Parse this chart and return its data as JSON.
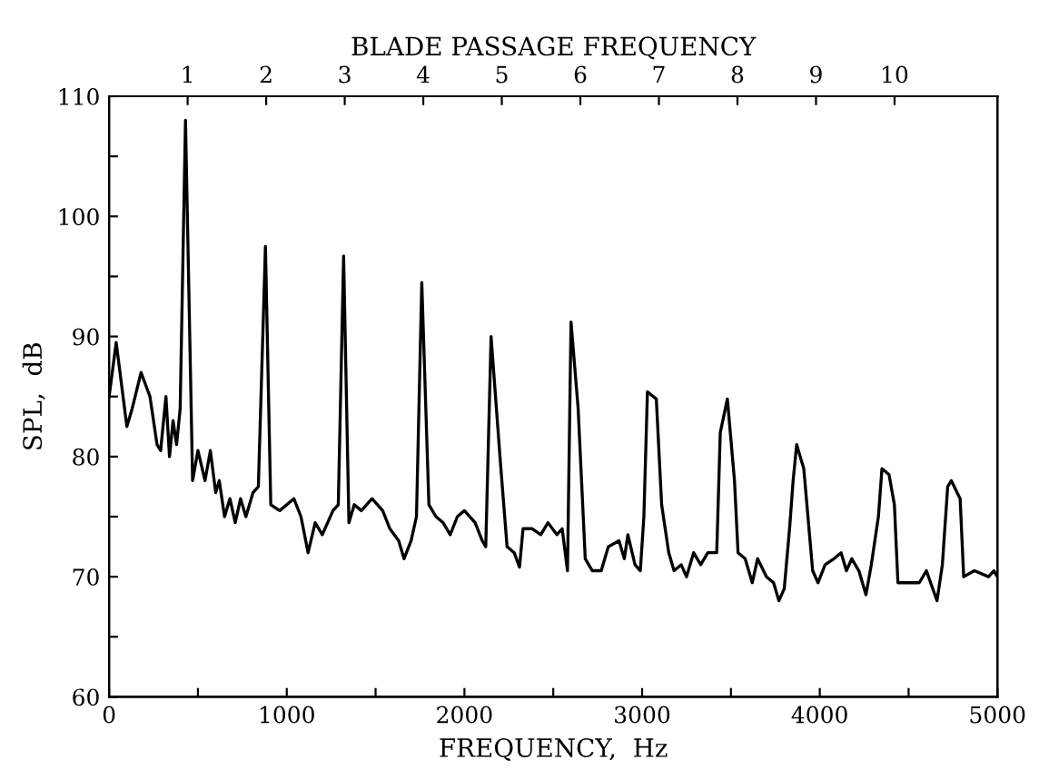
{
  "chart_data": {
    "type": "line",
    "xlabel": "FREQUENCY,  Hz",
    "ylabel": "SPL,  dB",
    "x2label": "BLADE PASSAGE FREQUENCY",
    "x": [
      0,
      40,
      100,
      130,
      180,
      230,
      270,
      290,
      320,
      340,
      360,
      380,
      400,
      430,
      470,
      500,
      540,
      570,
      600,
      620,
      650,
      680,
      710,
      740,
      770,
      810,
      840,
      880,
      910,
      960,
      1040,
      1080,
      1120,
      1160,
      1200,
      1260,
      1290,
      1320,
      1350,
      1380,
      1420,
      1480,
      1540,
      1580,
      1630,
      1660,
      1700,
      1730,
      1760,
      1800,
      1840,
      1880,
      1920,
      1960,
      2000,
      2060,
      2100,
      2120,
      2150,
      2200,
      2240,
      2280,
      2310,
      2330,
      2380,
      2430,
      2470,
      2520,
      2550,
      2580,
      2600,
      2640,
      2680,
      2720,
      2770,
      2810,
      2870,
      2900,
      2920,
      2960,
      2990,
      3010,
      3030,
      3080,
      3110,
      3150,
      3180,
      3220,
      3250,
      3290,
      3330,
      3370,
      3420,
      3440,
      3480,
      3520,
      3540,
      3580,
      3620,
      3650,
      3700,
      3740,
      3770,
      3800,
      3830,
      3850,
      3870,
      3910,
      3960,
      3990,
      4030,
      4080,
      4120,
      4150,
      4180,
      4220,
      4260,
      4290,
      4330,
      4350,
      4390,
      4420,
      4440,
      4500,
      4560,
      4600,
      4660,
      4690,
      4720,
      4740,
      4790,
      4810,
      4870,
      4950,
      4980,
      5000
    ],
    "series": [
      {
        "color": "#000000",
        "values": [
          85,
          89.5,
          82.5,
          84,
          87,
          85,
          81,
          80.5,
          85,
          80,
          83,
          81,
          84,
          108,
          78,
          80.5,
          78,
          80.5,
          77,
          78,
          75,
          76.5,
          74.5,
          76.5,
          75,
          77,
          77.5,
          97.5,
          76,
          75.5,
          76.5,
          75,
          72,
          74.5,
          73.5,
          75.5,
          76,
          96.7,
          74.5,
          76,
          75.5,
          76.5,
          75.5,
          74,
          73,
          71.5,
          73,
          75,
          94.5,
          76,
          75,
          74.5,
          73.5,
          75,
          75.5,
          74.5,
          73,
          72.5,
          90,
          80,
          72.5,
          72,
          70.8,
          74,
          74,
          73.5,
          74.5,
          73.5,
          74,
          70.5,
          91.2,
          84,
          71.5,
          70.5,
          70.5,
          72.5,
          73,
          71.5,
          73.5,
          71,
          70.5,
          75,
          85.4,
          84.8,
          76,
          72,
          70.5,
          71,
          70,
          72,
          71,
          72,
          72,
          82,
          84.8,
          78,
          72,
          71.5,
          69.5,
          71.5,
          70,
          69.5,
          68,
          69,
          74,
          78,
          81,
          79,
          70.5,
          69.5,
          71,
          71.5,
          72,
          70.5,
          71.5,
          70.5,
          68.5,
          71,
          75,
          79,
          78.5,
          76,
          69.5,
          69.5,
          69.5,
          70.5,
          68,
          71,
          77.5,
          78,
          76.5,
          70,
          70.5,
          70,
          70.5,
          70
        ]
      }
    ],
    "xlim": [
      0,
      5000
    ],
    "ylim": [
      60,
      110
    ],
    "xticks": [
      0,
      {
        "value": 500,
        "label": null
      },
      1000,
      {
        "value": 1500,
        "label": null
      },
      2000,
      {
        "value": 2500,
        "label": null
      },
      3000,
      {
        "value": 3500,
        "label": null
      },
      4000,
      {
        "value": 4500,
        "label": null
      },
      5000
    ],
    "yticks": [
      60,
      {
        "value": 65,
        "label": null
      },
      70,
      {
        "value": 75,
        "label": null
      },
      80,
      {
        "value": 85,
        "label": null
      },
      90,
      {
        "value": 95,
        "label": null
      },
      100,
      {
        "value": 105,
        "label": null
      },
      110
    ],
    "x2lim": [
      0,
      11.31
    ],
    "x2ticks": [
      1,
      2,
      3,
      4,
      5,
      6,
      7,
      8,
      9,
      10
    ],
    "grid": false,
    "legend": false,
    "marker": "none",
    "line_style": "solid"
  }
}
